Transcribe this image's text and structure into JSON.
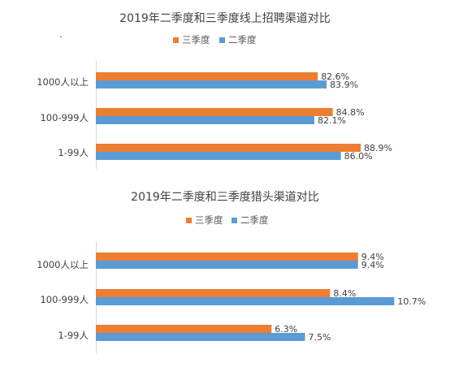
{
  "chart_data": [
    {
      "type": "bar",
      "orientation": "horizontal",
      "title": "2019年二季度和三季度线上招聘渠道对比",
      "categories": [
        "1000人以上",
        "100-999人",
        "1-99人"
      ],
      "series": [
        {
          "name": "三季度",
          "color": "#ED7D31",
          "values": [
            82.6,
            84.8,
            88.9
          ],
          "labels": [
            "82.6%",
            "84.8%",
            "88.9%"
          ]
        },
        {
          "name": "二季度",
          "color": "#5B9BD5",
          "values": [
            83.9,
            82.1,
            86.0
          ],
          "labels": [
            "83.9%",
            "82.1%",
            "86.0%"
          ]
        }
      ],
      "xlim": [
        50,
        100
      ],
      "legend": "top",
      "grid": false
    },
    {
      "type": "bar",
      "orientation": "horizontal",
      "title": "2019年二季度和三季度猎头渠道对比",
      "categories": [
        "1000人以上",
        "100-999人",
        "1-99人"
      ],
      "series": [
        {
          "name": "三季度",
          "color": "#ED7D31",
          "values": [
            9.4,
            8.4,
            6.3
          ],
          "labels": [
            "9.4%",
            "8.4%",
            "6.3%"
          ]
        },
        {
          "name": "二季度",
          "color": "#5B9BD5",
          "values": [
            9.4,
            10.7,
            7.5
          ],
          "labels": [
            "9.4%",
            "10.7%",
            "7.5%"
          ]
        }
      ],
      "xlim": [
        0,
        12
      ],
      "legend": "top",
      "grid": false
    }
  ],
  "stray_mark": "."
}
